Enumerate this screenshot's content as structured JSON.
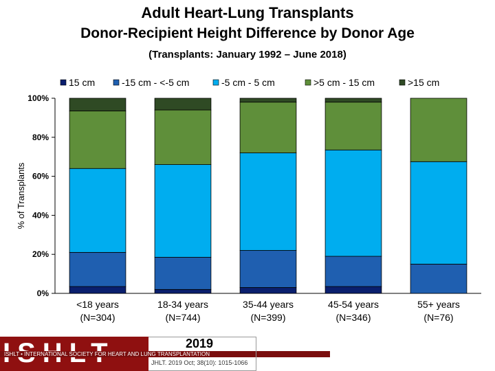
{
  "header": {
    "title": "Adult Heart-Lung Transplants",
    "subtitle": "Donor-Recipient Height Difference by Donor Age",
    "period": "(Transplants: January 1992 – June 2018)"
  },
  "logo": {
    "name": "ISHLT",
    "tagline": "ISHLT • INTERNATIONAL SOCIETY FOR HEART AND LUNG TRANSPLANTATION",
    "year": "2019",
    "citation": "JHLT. 2019 Oct; 38(10): 1015-1066"
  },
  "chart_data": {
    "type": "bar",
    "stacked": true,
    "percent": true,
    "categories": [
      "<18 years (N=304)",
      "18-34 years (N=744)",
      "35-44 years (N=399)",
      "45-54 years (N=346)",
      "55+ years (N=76)"
    ],
    "category_lines": [
      [
        "<18 years",
        "(N=304)"
      ],
      [
        "18-34 years",
        "(N=744)"
      ],
      [
        "35-44 years",
        "(N=399)"
      ],
      [
        "45-54 years",
        "(N=346)"
      ],
      [
        "55+ years",
        "(N=76)"
      ]
    ],
    "series": [
      {
        "name": "15 cm",
        "color": "#0a1f6e",
        "values": [
          3.5,
          2.0,
          3.0,
          3.5,
          0.0
        ]
      },
      {
        "name": "-15 cm - <-5 cm",
        "color": "#1f5fb0",
        "values": [
          17.5,
          16.5,
          19.0,
          15.5,
          15.0
        ]
      },
      {
        "name": "-5 cm - 5 cm",
        "color": "#00adef",
        "values": [
          43.0,
          47.5,
          50.0,
          54.5,
          52.5
        ]
      },
      {
        "name": ">5 cm - 15 cm",
        "color": "#5f8f3a",
        "values": [
          29.5,
          28.0,
          26.0,
          24.5,
          32.5
        ]
      },
      {
        "name": ">15 cm",
        "color": "#2f4a24",
        "values": [
          6.5,
          6.0,
          2.0,
          2.0,
          0.0
        ]
      }
    ],
    "ylabel": "% of Transplants",
    "yticks": [
      "0%",
      "20%",
      "40%",
      "60%",
      "80%",
      "100%"
    ],
    "ylim": [
      0,
      100
    ],
    "grid": false,
    "legend_position": "top"
  }
}
